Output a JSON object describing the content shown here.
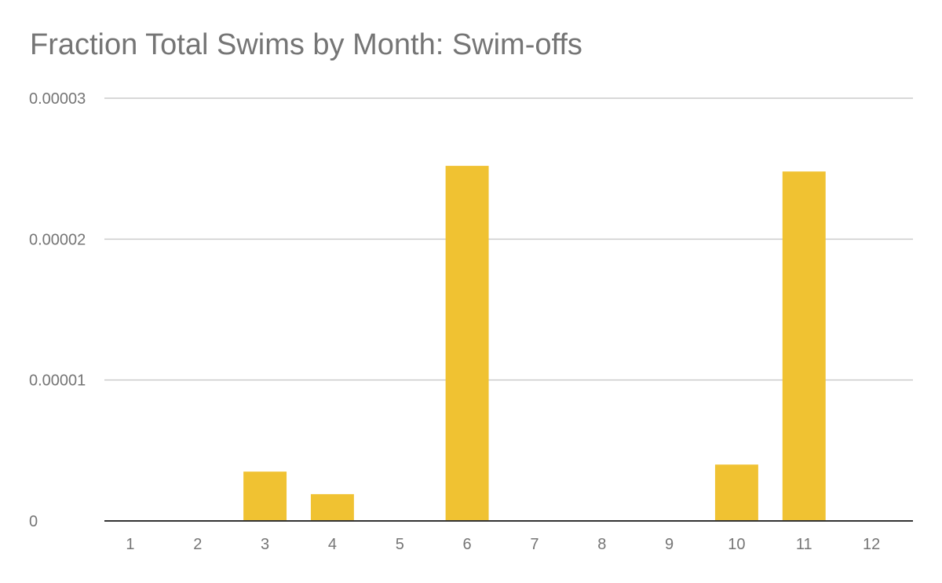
{
  "chart_data": {
    "type": "bar",
    "title": "Fraction Total Swims by Month: Swim-offs",
    "xlabel": "",
    "ylabel": "",
    "categories": [
      "1",
      "2",
      "3",
      "4",
      "5",
      "6",
      "7",
      "8",
      "9",
      "10",
      "11",
      "12"
    ],
    "values": [
      0,
      0,
      3.5e-06,
      1.9e-06,
      0,
      2.52e-05,
      0,
      0,
      0,
      4e-06,
      2.48e-05,
      0
    ],
    "ylim": [
      0,
      3e-05
    ],
    "yticks": [
      0,
      1e-05,
      2e-05,
      3e-05
    ],
    "ytick_labels": [
      "0",
      "0.00001",
      "0.00002",
      "0.00003"
    ],
    "grid": true,
    "legend": "none",
    "colors": {
      "bar": "#f0c232",
      "grid": "#cccccc",
      "axis": "#333333",
      "text": "#757575"
    }
  }
}
